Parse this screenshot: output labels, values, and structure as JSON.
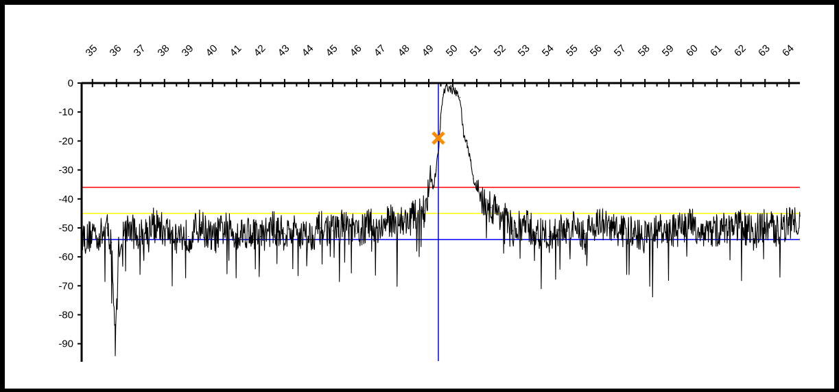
{
  "chart_data": {
    "type": "line",
    "title": "",
    "xlabel": "",
    "ylabel": "",
    "xlim": [
      34.55,
      64.45
    ],
    "ylim": [
      -96,
      0
    ],
    "x_ticks": [
      35,
      36,
      37,
      38,
      39,
      40,
      41,
      42,
      43,
      44,
      45,
      46,
      47,
      48,
      49,
      50,
      51,
      52,
      53,
      54,
      55,
      56,
      57,
      58,
      59,
      60,
      61,
      62,
      63,
      64
    ],
    "x_tick_labels": [
      "35",
      "36",
      "37",
      "38",
      "39",
      "40",
      "41",
      "42",
      "43",
      "44",
      "45",
      "46",
      "47",
      "48",
      "49",
      "50",
      "51",
      "52",
      "53",
      "54",
      "55",
      "56",
      "57",
      "58",
      "59",
      "60",
      "61",
      "62",
      "63",
      "64"
    ],
    "y_ticks": [
      0,
      -10,
      -20,
      -30,
      -40,
      -50,
      -60,
      -70,
      -80,
      -90
    ],
    "y_tick_labels": [
      "0",
      "-10",
      "-20",
      "-30",
      "-40",
      "-50",
      "-60",
      "-70",
      "-80",
      "-90"
    ],
    "grid": false,
    "x_axis_position": "top",
    "series": [
      {
        "color": "#000000",
        "x": [
          34.55,
          34.8,
          35.0,
          35.3,
          35.6,
          35.8,
          35.95,
          36.1,
          36.3,
          36.5,
          37.0,
          37.5,
          38.0,
          38.5,
          39.0,
          39.5,
          40.0,
          40.5,
          41.0,
          41.5,
          42.0,
          42.5,
          43.0,
          43.5,
          44.0,
          44.5,
          45.0,
          45.5,
          46.0,
          46.5,
          47.0,
          47.5,
          48.0,
          48.4,
          48.8,
          48.95,
          49.1,
          49.2,
          49.3,
          49.4,
          49.5,
          49.6,
          49.75,
          49.9,
          50.1,
          50.3,
          50.45,
          50.6,
          50.75,
          50.85,
          51.0,
          51.3,
          51.6,
          52.0,
          52.5,
          53.0,
          53.5,
          54.0,
          54.5,
          55.0,
          55.5,
          56.0,
          56.5,
          57.0,
          57.5,
          58.0,
          58.5,
          59.0,
          59.5,
          60.0,
          60.5,
          61.0,
          61.5,
          62.0,
          62.5,
          63.0,
          63.5,
          64.0,
          64.45
        ],
        "y": [
          -52,
          -54,
          -51,
          -53,
          -50,
          -55,
          -91,
          -56,
          -52,
          -50,
          -53,
          -48,
          -51,
          -52,
          -53,
          -49,
          -54,
          -50,
          -52,
          -51,
          -53,
          -50,
          -52,
          -51,
          -53,
          -50,
          -51,
          -49,
          -52,
          -49,
          -50,
          -47,
          -48,
          -46,
          -44,
          -40,
          -33,
          -36,
          -30,
          -24,
          -12,
          -4,
          -1,
          -2,
          -3,
          -5,
          -18,
          -21,
          -27,
          -33,
          -36,
          -41,
          -43,
          -45,
          -51,
          -49,
          -52,
          -53,
          -51,
          -50,
          -52,
          -48,
          -50,
          -51,
          -52,
          -53,
          -51,
          -52,
          -50,
          -49,
          -52,
          -51,
          -50,
          -49,
          -52,
          -49,
          -51,
          -48,
          -46
        ]
      }
    ],
    "reference_lines": [
      {
        "orientation": "horizontal",
        "y": -36,
        "color": "#ff0000"
      },
      {
        "orientation": "horizontal",
        "y": -45,
        "color": "#ffff00"
      },
      {
        "orientation": "horizontal",
        "y": -54,
        "color": "#0000ff"
      },
      {
        "orientation": "vertical",
        "x": 49.4,
        "color": "#0000ff"
      }
    ],
    "markers": [
      {
        "x": 49.4,
        "y": -19,
        "symbol": "x",
        "color": "#ff8c00"
      }
    ]
  }
}
